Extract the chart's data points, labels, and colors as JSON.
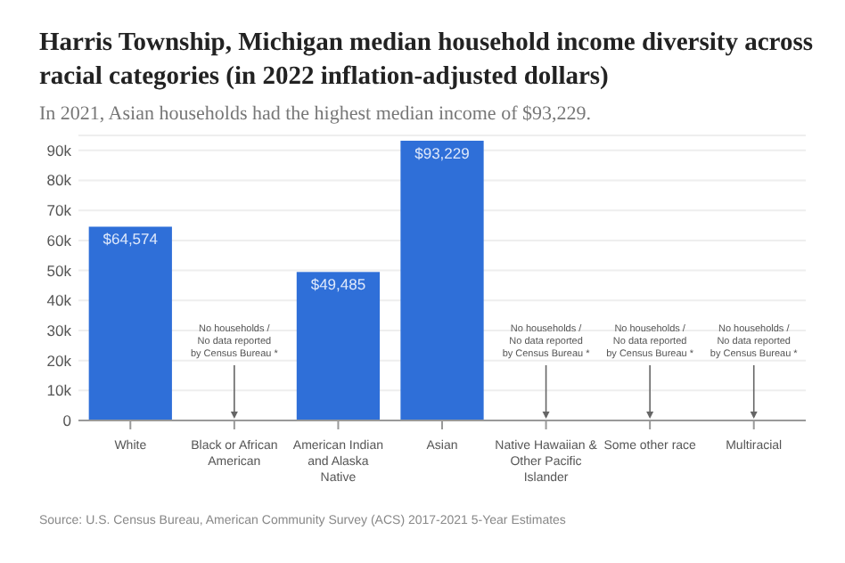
{
  "chart_data": {
    "type": "bar",
    "title": "Harris Township, Michigan median household income diversity across racial categories (in 2022 inflation-adjusted dollars)",
    "subtitle": "In 2021, Asian households had the highest median income of $93,229.",
    "categories": [
      "White",
      "Black or African American",
      "American Indian and Alaska Native",
      "Asian",
      "Native Hawaiian & Other Pacific Islander",
      "Some other race",
      "Multiracial"
    ],
    "values": [
      64574,
      null,
      49485,
      93229,
      null,
      null,
      null
    ],
    "value_labels": [
      "$64,574",
      null,
      "$49,485",
      "$93,229",
      null,
      null,
      null
    ],
    "color": "#2f6fd8",
    "ylim": [
      0,
      95000
    ],
    "yticks": [
      {
        "value": 0,
        "label": "0"
      },
      {
        "value": 10000,
        "label": "10k"
      },
      {
        "value": 20000,
        "label": "20k"
      },
      {
        "value": 30000,
        "label": "30k"
      },
      {
        "value": 40000,
        "label": "40k"
      },
      {
        "value": 50000,
        "label": "50k"
      },
      {
        "value": 60000,
        "label": "60k"
      },
      {
        "value": 70000,
        "label": "70k"
      },
      {
        "value": 80000,
        "label": "80k"
      },
      {
        "value": 90000,
        "label": "90k"
      }
    ],
    "grid": "y",
    "annotations": [
      "No households / No data reported by Census Bureau *",
      "No households / No data reported by Census Bureau *",
      "No households / No data reported by Census Bureau *",
      "No households / No data reported by Census Bureau *",
      "Source: U.S. Census Bureau, American Community Survey (ACS) 2017-2021 5-Year Estimates"
    ]
  }
}
